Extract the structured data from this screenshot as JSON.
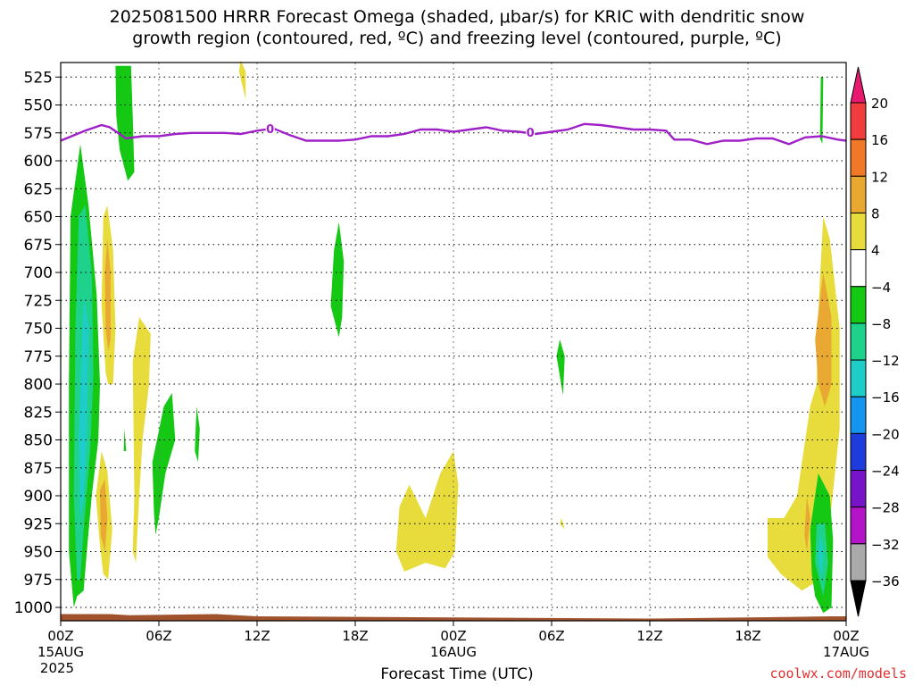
{
  "chart_data": {
    "type": "heatmap",
    "title_line1": "2025081500 HRRR Forecast Omega (shaded, μbar/s) for KRIC with dendritic snow",
    "title_line2": "growth region (contoured, red, ºC) and freezing level (contoured, purple, ºC)",
    "xlabel": "Forecast Time (UTC)",
    "credit": "coolwx.com/models",
    "y_ticks": [
      "525",
      "550",
      "575",
      "600",
      "625",
      "650",
      "675",
      "700",
      "725",
      "750",
      "775",
      "800",
      "825",
      "850",
      "875",
      "900",
      "925",
      "950",
      "975",
      "1000"
    ],
    "y_values": [
      525,
      550,
      575,
      600,
      625,
      650,
      675,
      700,
      725,
      750,
      775,
      800,
      825,
      850,
      875,
      900,
      925,
      950,
      975,
      1000
    ],
    "ylim": [
      512,
      1012
    ],
    "xlim_hours": [
      0,
      48
    ],
    "x_ticks": [
      {
        "hour": 0,
        "label": "00Z",
        "sub": "15AUG",
        "sub2": "2025"
      },
      {
        "hour": 6,
        "label": "06Z",
        "sub": "",
        "sub2": ""
      },
      {
        "hour": 12,
        "label": "12Z",
        "sub": "",
        "sub2": ""
      },
      {
        "hour": 18,
        "label": "18Z",
        "sub": "",
        "sub2": ""
      },
      {
        "hour": 24,
        "label": "00Z",
        "sub": "16AUG",
        "sub2": ""
      },
      {
        "hour": 30,
        "label": "06Z",
        "sub": "",
        "sub2": ""
      },
      {
        "hour": 36,
        "label": "12Z",
        "sub": "",
        "sub2": ""
      },
      {
        "hour": 42,
        "label": "18Z",
        "sub": "",
        "sub2": ""
      },
      {
        "hour": 48,
        "label": "00Z",
        "sub": "17AUG",
        "sub2": ""
      }
    ],
    "colorbar": {
      "labels": [
        "20",
        "16",
        "12",
        "8",
        "4",
        "−4",
        "−8",
        "−12",
        "−16",
        "−20",
        "−24",
        "−28",
        "−32",
        "−36"
      ],
      "colors": [
        "#e8196e",
        "#f03c3c",
        "#f07828",
        "#e8a832",
        "#e8dc3c",
        "#ffffff",
        "#14c814",
        "#1ed28c",
        "#1ecdc8",
        "#1496f0",
        "#1e3cdc",
        "#7814c8",
        "#b414c8",
        "#aaaaaa",
        "#000000"
      ]
    },
    "freezing_level": {
      "label": "0",
      "points": [
        [
          0,
          582
        ],
        [
          1.5,
          573
        ],
        [
          2.5,
          568
        ],
        [
          3,
          570
        ],
        [
          4,
          580
        ],
        [
          5,
          578
        ],
        [
          6,
          578
        ],
        [
          7,
          576
        ],
        [
          8,
          575
        ],
        [
          9,
          575
        ],
        [
          10,
          575
        ],
        [
          11,
          576
        ],
        [
          12,
          573
        ],
        [
          13,
          571
        ],
        [
          14,
          577
        ],
        [
          15,
          582
        ],
        [
          16,
          582
        ],
        [
          17,
          582
        ],
        [
          18,
          581
        ],
        [
          19,
          578
        ],
        [
          20,
          578
        ],
        [
          21,
          576
        ],
        [
          22,
          572
        ],
        [
          23,
          572
        ],
        [
          24,
          574
        ],
        [
          25,
          572
        ],
        [
          26,
          570
        ],
        [
          27,
          573
        ],
        [
          28,
          574
        ],
        [
          29,
          576
        ],
        [
          30,
          574
        ],
        [
          31,
          572
        ],
        [
          32,
          567
        ],
        [
          33,
          568
        ],
        [
          34,
          570
        ],
        [
          35,
          572
        ],
        [
          36,
          572
        ],
        [
          37,
          573
        ],
        [
          37.5,
          581
        ],
        [
          38.5,
          581
        ],
        [
          39.5,
          585
        ],
        [
          40.5,
          582
        ],
        [
          41.5,
          582
        ],
        [
          42.5,
          580
        ],
        [
          43.5,
          580
        ],
        [
          44.5,
          585
        ],
        [
          45.5,
          579
        ],
        [
          46.5,
          578
        ],
        [
          47.5,
          581
        ],
        [
          48,
          582
        ]
      ]
    },
    "regions": [
      {
        "color": "#14c814",
        "points": [
          [
            0.8,
            1000
          ],
          [
            0.5,
            950
          ],
          [
            0.5,
            800
          ],
          [
            0.6,
            650
          ],
          [
            1.2,
            585
          ],
          [
            1.7,
            640
          ],
          [
            2.2,
            720
          ],
          [
            2.4,
            800
          ],
          [
            2.3,
            850
          ],
          [
            1.9,
            900
          ],
          [
            1.6,
            950
          ],
          [
            1.4,
            985
          ],
          [
            1,
            990
          ]
        ]
      },
      {
        "color": "#1ed28c",
        "points": [
          [
            1,
            975
          ],
          [
            0.8,
            900
          ],
          [
            0.9,
            750
          ],
          [
            1.1,
            650
          ],
          [
            1.5,
            640
          ],
          [
            1.9,
            700
          ],
          [
            2,
            790
          ],
          [
            1.8,
            860
          ],
          [
            1.4,
            930
          ],
          [
            1.2,
            975
          ]
        ]
      },
      {
        "color": "#1ecdc8",
        "points": [
          [
            1.2,
            920
          ],
          [
            1.1,
            850
          ],
          [
            1.4,
            720
          ],
          [
            1.7,
            750
          ],
          [
            1.6,
            850
          ],
          [
            1.4,
            900
          ]
        ]
      },
      {
        "color": "#14c814",
        "points": [
          [
            3.35,
            515
          ],
          [
            4.3,
            515
          ],
          [
            4.4,
            560
          ],
          [
            4.5,
            610
          ],
          [
            4.1,
            618
          ],
          [
            3.6,
            590
          ],
          [
            3.4,
            560
          ]
        ]
      },
      {
        "color": "#e8dc3c",
        "points": [
          [
            2.75,
            790
          ],
          [
            2.5,
            730
          ],
          [
            2.6,
            650
          ],
          [
            2.85,
            640
          ],
          [
            3.2,
            680
          ],
          [
            3.35,
            750
          ],
          [
            3.2,
            800
          ],
          [
            2.9,
            800
          ]
        ]
      },
      {
        "color": "#e8a832",
        "points": [
          [
            2.75,
            750
          ],
          [
            2.7,
            700
          ],
          [
            2.85,
            670
          ],
          [
            3.05,
            700
          ],
          [
            3.05,
            760
          ],
          [
            2.9,
            770
          ]
        ]
      },
      {
        "color": "#e8dc3c",
        "points": [
          [
            2.4,
            945
          ],
          [
            2.15,
            900
          ],
          [
            2.5,
            860
          ],
          [
            2.85,
            878
          ],
          [
            3.15,
            930
          ],
          [
            2.9,
            975
          ],
          [
            2.6,
            970
          ]
        ]
      },
      {
        "color": "#e8a832",
        "points": [
          [
            2.45,
            935
          ],
          [
            2.4,
            895
          ],
          [
            2.7,
            885
          ],
          [
            2.85,
            920
          ],
          [
            2.7,
            950
          ]
        ]
      },
      {
        "color": "#e8dc3c",
        "points": [
          [
            4.4,
            780
          ],
          [
            4.8,
            740
          ],
          [
            5.5,
            755
          ],
          [
            5.4,
            800
          ],
          [
            5,
            850
          ],
          [
            4.8,
            900
          ],
          [
            4.6,
            960
          ],
          [
            4.4,
            950
          ],
          [
            4.5,
            900
          ]
        ]
      },
      {
        "color": "#14c814",
        "points": [
          [
            5.7,
            915
          ],
          [
            5.6,
            870
          ],
          [
            6.3,
            820
          ],
          [
            6.8,
            808
          ],
          [
            7,
            850
          ],
          [
            6.4,
            880
          ],
          [
            6,
            920
          ],
          [
            5.8,
            935
          ]
        ]
      },
      {
        "color": "#14c814",
        "points": [
          [
            8.2,
            860
          ],
          [
            8.3,
            820
          ],
          [
            8.5,
            840
          ],
          [
            8.4,
            870
          ]
        ]
      },
      {
        "color": "#14c814",
        "points": [
          [
            3.85,
            860
          ],
          [
            3.9,
            840
          ],
          [
            4,
            860
          ]
        ]
      },
      {
        "color": "#e8dc3c",
        "points": [
          [
            10.9,
            520
          ],
          [
            11,
            510
          ],
          [
            11.3,
            520
          ],
          [
            11.3,
            545
          ]
        ]
      },
      {
        "color": "#14c814",
        "points": [
          [
            16.5,
            730
          ],
          [
            16.7,
            680
          ],
          [
            17,
            655
          ],
          [
            17.3,
            690
          ],
          [
            17.2,
            740
          ],
          [
            17,
            758
          ]
        ]
      },
      {
        "color": "#e8dc3c",
        "points": [
          [
            20.5,
            950
          ],
          [
            20.7,
            910
          ],
          [
            21.3,
            890
          ],
          [
            22.3,
            920
          ],
          [
            23.2,
            880
          ],
          [
            24,
            860
          ],
          [
            24.3,
            890
          ],
          [
            24.1,
            950
          ],
          [
            23.5,
            965
          ],
          [
            22.3,
            960
          ],
          [
            21,
            968
          ]
        ]
      },
      {
        "color": "#14c814",
        "points": [
          [
            30.3,
            775
          ],
          [
            30.5,
            760
          ],
          [
            30.8,
            775
          ],
          [
            30.7,
            810
          ]
        ]
      },
      {
        "color": "#e8dc3c",
        "points": [
          [
            30.5,
            925
          ],
          [
            30.6,
            920
          ],
          [
            30.8,
            930
          ]
        ]
      },
      {
        "color": "#e8dc3c",
        "points": [
          [
            46.2,
            800
          ],
          [
            46.3,
            735
          ],
          [
            46.6,
            650
          ],
          [
            47,
            670
          ],
          [
            47.6,
            750
          ],
          [
            47.6,
            840
          ],
          [
            47.1,
            910
          ],
          [
            46.4,
            975
          ],
          [
            45.3,
            985
          ],
          [
            44,
            970
          ],
          [
            43.2,
            955
          ],
          [
            43.2,
            920
          ],
          [
            44.2,
            920
          ],
          [
            45,
            900
          ],
          [
            45.4,
            860
          ],
          [
            45.8,
            820
          ]
        ]
      },
      {
        "color": "#e8a832",
        "points": [
          [
            46.3,
            800
          ],
          [
            46.1,
            760
          ],
          [
            46.6,
            700
          ],
          [
            47.1,
            740
          ],
          [
            47.1,
            800
          ],
          [
            46.7,
            820
          ]
        ]
      },
      {
        "color": "#e8a832",
        "points": [
          [
            45.45,
            935
          ],
          [
            45.6,
            900
          ],
          [
            45.8,
            920
          ],
          [
            45.6,
            950
          ]
        ]
      },
      {
        "color": "#14c814",
        "points": [
          [
            45.9,
            970
          ],
          [
            45.8,
            930
          ],
          [
            46.3,
            880
          ],
          [
            47,
            900
          ],
          [
            47.2,
            940
          ],
          [
            47.1,
            1000
          ],
          [
            46.6,
            1005
          ],
          [
            46.1,
            990
          ]
        ]
      },
      {
        "color": "#1ed28c",
        "points": [
          [
            46.1,
            960
          ],
          [
            46.2,
            925
          ],
          [
            46.7,
            925
          ],
          [
            46.9,
            960
          ],
          [
            46.6,
            990
          ]
        ]
      },
      {
        "color": "#1ecdc8",
        "points": [
          [
            46.3,
            955
          ],
          [
            46.4,
            935
          ],
          [
            46.6,
            950
          ],
          [
            46.5,
            975
          ]
        ]
      },
      {
        "color": "#14c814",
        "points": [
          [
            46.4,
            580
          ],
          [
            46.45,
            525
          ],
          [
            46.6,
            525
          ],
          [
            46.55,
            585
          ]
        ]
      }
    ],
    "terrain": {
      "color": "#a0522d",
      "points": [
        [
          0,
          1012
        ],
        [
          0,
          1006
        ],
        [
          3,
          1006
        ],
        [
          4.2,
          1007
        ],
        [
          9.5,
          1006
        ],
        [
          12,
          1008
        ],
        [
          24,
          1009
        ],
        [
          36,
          1010
        ],
        [
          42,
          1009
        ],
        [
          47,
          1008
        ],
        [
          48,
          1008
        ],
        [
          48,
          1012
        ]
      ]
    }
  }
}
